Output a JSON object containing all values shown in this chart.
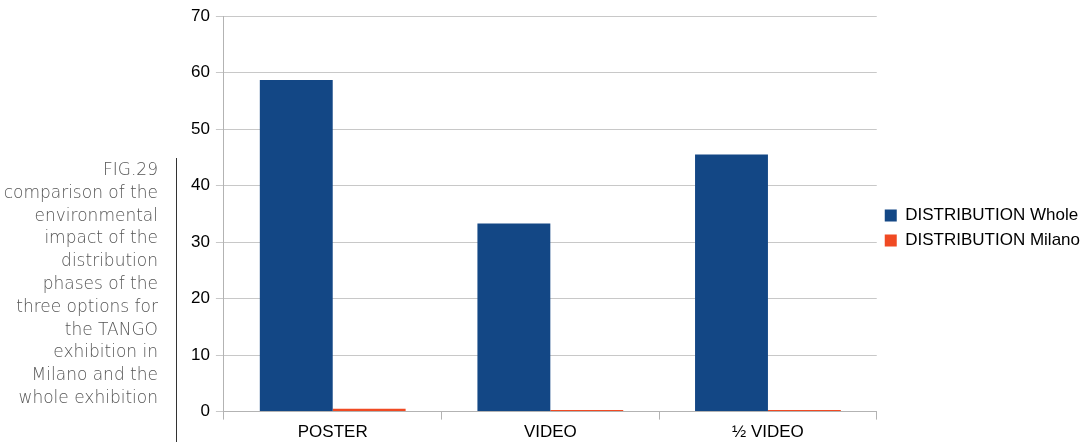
{
  "chart_data": {
    "type": "bar",
    "categories": [
      "POSTER",
      "VIDEO",
      "½ VIDEO"
    ],
    "series": [
      {
        "name": "DISTRIBUTION Whole",
        "color": "#134785",
        "values": [
          58.7,
          33.3,
          45.5
        ]
      },
      {
        "name": "DISTRIBUTION Milano",
        "color": "#f04a23",
        "values": [
          0.5,
          0.3,
          0.3
        ]
      }
    ],
    "ylim": [
      0,
      70
    ],
    "yticks": [
      0,
      10,
      20,
      30,
      40,
      50,
      60,
      70
    ],
    "grid": "y",
    "legend": "right",
    "annotations": [
      "FIG.29 comparison of the environmental impact of the distribution phases of the three options for the TANGO exhibition in Milano and the whole exhibition"
    ]
  }
}
